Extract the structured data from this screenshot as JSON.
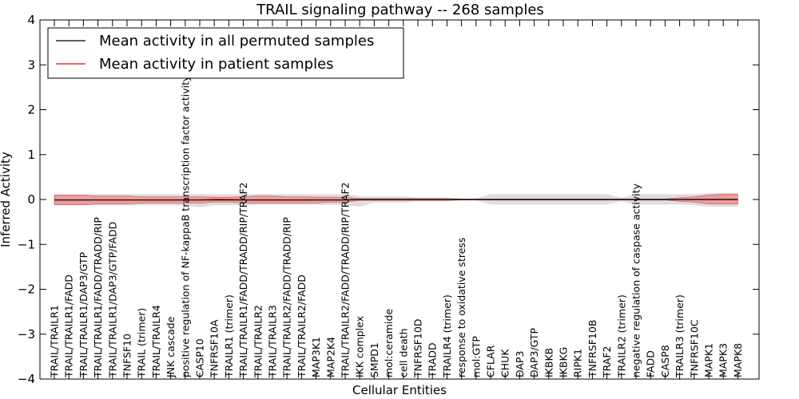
{
  "chart_data": {
    "type": "line",
    "title": "TRAIL signaling pathway -- 268 samples",
    "xlabel": "Cellular Entities",
    "ylabel": "Inferred Activity",
    "ylim": [
      -4,
      4
    ],
    "yticks": [
      -4,
      -3,
      -2,
      -1,
      0,
      1,
      2,
      3,
      4
    ],
    "ytick_labels": [
      "−4",
      "−3",
      "−2",
      "−1",
      "0",
      "1",
      "2",
      "3",
      "4"
    ],
    "grid": false,
    "legend_position": "top-left",
    "categories": [
      "TRAIL/TRAILR1",
      "TRAIL/TRAILR1/FADD",
      "TRAIL/TRAILR1/DAP3/GTP",
      "TRAIL/TRAILR1/FADD/TRADD/RIP",
      "TRAIL/TRAILR1/DAP3/GTP/FADD",
      "TNFSF10",
      "TRAIL (trimer)",
      "TRAIL/TRAILR4",
      "JNK cascade",
      "positive regulation of NF-kappaB transcription factor activity",
      "CASP10",
      "TNFRSF10A",
      "TRAILR1 (trimer)",
      "TRAIL/TRAILR1/FADD/TRADD/RIP/TRAF2",
      "TRAIL/TRAILR2",
      "TRAIL/TRAILR3",
      "TRAIL/TRAILR2/FADD/TRADD/RIP",
      "TRAIL/TRAILR2/FADD",
      "MAP3K1",
      "MAP2K4",
      "TRAIL/TRAILR2/FADD/TRADD/RIP/TRAF2",
      "IKK complex",
      "SMPD1",
      "mol:ceramide",
      "cell death",
      "TNFRSF10D",
      "TRADD",
      "TRAILR4 (trimer)",
      "response to oxidative stress",
      "mol:GTP",
      "CFLAR",
      "CHUK",
      "DAP3",
      "DAP3/GTP",
      "IKBKB",
      "IKBKG",
      "RIPK1",
      "TNFRSF10B",
      "TRAF2",
      "TRAILR2 (trimer)",
      "negative regulation of caspase activity",
      "FADD",
      "CASP8",
      "TRAILR3 (trimer)",
      "TNFRSF10C",
      "MAPK1",
      "MAPK3",
      "MAPK8"
    ],
    "series": [
      {
        "name": "Mean activity in all permuted samples",
        "color": "#000000",
        "values": [
          -0.01,
          -0.01,
          -0.01,
          -0.01,
          -0.01,
          -0.01,
          -0.01,
          -0.01,
          -0.01,
          -0.01,
          -0.01,
          -0.01,
          -0.01,
          -0.01,
          -0.01,
          -0.01,
          -0.01,
          -0.01,
          -0.01,
          -0.01,
          -0.01,
          0.0,
          0.0,
          0.0,
          0.0,
          0.0,
          0.0,
          0.0,
          0.0,
          0.0,
          0.0,
          0.0,
          0.0,
          0.0,
          0.0,
          0.0,
          0.0,
          0.0,
          0.0,
          0.0,
          0.0,
          0.0,
          0.0,
          0.0,
          0.0,
          0.0,
          0.0,
          0.0
        ],
        "band": {
          "color": "#d3d3d3",
          "lower": [
            -0.13,
            -0.13,
            -0.13,
            -0.13,
            -0.13,
            -0.13,
            -0.13,
            -0.13,
            -0.13,
            -0.13,
            -0.17,
            -0.13,
            -0.13,
            -0.13,
            -0.12,
            -0.12,
            -0.12,
            -0.12,
            -0.12,
            -0.12,
            -0.12,
            -0.16,
            -0.07,
            -0.07,
            -0.07,
            -0.04,
            -0.04,
            -0.04,
            -0.02,
            -0.02,
            -0.11,
            -0.11,
            -0.11,
            -0.11,
            -0.11,
            -0.11,
            -0.11,
            -0.11,
            -0.11,
            -0.04,
            -0.11,
            -0.11,
            -0.11,
            -0.11,
            -0.13,
            -0.16,
            -0.16,
            -0.16
          ],
          "upper": [
            0.12,
            0.12,
            0.12,
            0.12,
            0.12,
            0.12,
            0.12,
            0.12,
            0.12,
            0.12,
            0.12,
            0.12,
            0.12,
            0.12,
            0.12,
            0.12,
            0.12,
            0.12,
            0.12,
            0.12,
            0.12,
            0.07,
            0.07,
            0.07,
            0.07,
            0.04,
            0.04,
            0.04,
            0.02,
            0.02,
            0.12,
            0.12,
            0.12,
            0.12,
            0.12,
            0.12,
            0.12,
            0.12,
            0.12,
            0.04,
            0.12,
            0.12,
            0.12,
            0.12,
            0.12,
            0.14,
            0.14,
            0.14
          ]
        }
      },
      {
        "name": "Mean activity in patient samples",
        "color": "#ff0000",
        "values": [
          -0.01,
          -0.01,
          -0.01,
          -0.01,
          -0.01,
          -0.01,
          -0.01,
          -0.01,
          -0.01,
          -0.01,
          -0.01,
          0.0,
          0.0,
          -0.01,
          -0.01,
          -0.01,
          -0.01,
          -0.01,
          -0.01,
          -0.01,
          -0.01,
          0.0,
          0.0,
          0.0,
          0.0,
          0.0,
          0.0,
          0.0,
          0.0,
          0.0,
          0.0,
          0.0,
          0.0,
          0.0,
          0.0,
          0.0,
          0.0,
          0.0,
          0.0,
          0.0,
          0.0,
          0.0,
          0.0,
          0.0,
          0.0,
          0.0,
          0.0,
          0.0
        ],
        "band": {
          "color": "#f08080",
          "lower": [
            -0.12,
            -0.12,
            -0.12,
            -0.1,
            -0.1,
            -0.1,
            -0.08,
            -0.08,
            -0.08,
            -0.08,
            -0.08,
            -0.06,
            -0.06,
            -0.08,
            -0.08,
            -0.08,
            -0.08,
            -0.08,
            -0.08,
            -0.06,
            -0.06,
            -0.02,
            -0.02,
            -0.02,
            -0.02,
            -0.02,
            -0.02,
            -0.02,
            -0.01,
            -0.01,
            -0.01,
            -0.01,
            -0.01,
            -0.01,
            -0.01,
            -0.01,
            -0.01,
            -0.01,
            -0.01,
            -0.01,
            -0.01,
            -0.01,
            -0.01,
            -0.04,
            -0.06,
            -0.1,
            -0.1,
            -0.1
          ],
          "upper": [
            0.1,
            0.1,
            0.1,
            0.08,
            0.08,
            0.08,
            0.06,
            0.06,
            0.06,
            0.06,
            0.06,
            0.05,
            0.05,
            0.06,
            0.08,
            0.08,
            0.06,
            0.06,
            0.05,
            0.05,
            0.05,
            0.02,
            0.02,
            0.02,
            0.02,
            0.02,
            0.02,
            0.02,
            0.01,
            0.01,
            0.01,
            0.01,
            0.01,
            0.01,
            0.01,
            0.01,
            0.01,
            0.01,
            0.01,
            0.01,
            0.01,
            0.01,
            0.01,
            0.04,
            0.06,
            0.1,
            0.12,
            0.12
          ]
        }
      }
    ]
  }
}
